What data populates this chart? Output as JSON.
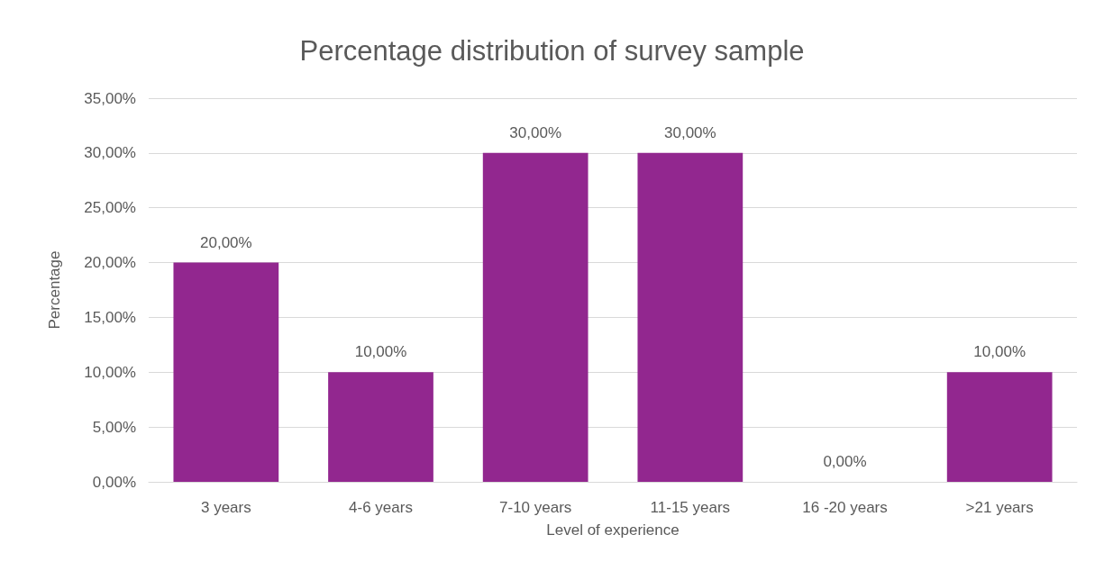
{
  "chart_data": {
    "type": "bar",
    "title": "Percentage distribution of survey sample",
    "xlabel": "Level of experience",
    "ylabel": "Percentage",
    "categories": [
      "3 years",
      "4-6 years",
      "7-10 years",
      "11-15 years",
      "16 -20 years",
      ">21 years"
    ],
    "values": [
      20,
      10,
      30,
      30,
      0,
      10
    ],
    "value_labels": [
      "20,00%",
      "10,00%",
      "30,00%",
      "30,00%",
      "0,00%",
      "10,00%"
    ],
    "color": "#92278f",
    "ylim": [
      0,
      35
    ],
    "yticks": [
      {
        "value": 0,
        "label": "0,00%"
      },
      {
        "value": 5,
        "label": "5,00%"
      },
      {
        "value": 10,
        "label": "10,00%"
      },
      {
        "value": 15,
        "label": "15,00%"
      },
      {
        "value": 20,
        "label": "20,00%"
      },
      {
        "value": 25,
        "label": "25,00%"
      },
      {
        "value": 30,
        "label": "30,00%"
      },
      {
        "value": 35,
        "label": "35,00%"
      }
    ],
    "grid": "y"
  }
}
